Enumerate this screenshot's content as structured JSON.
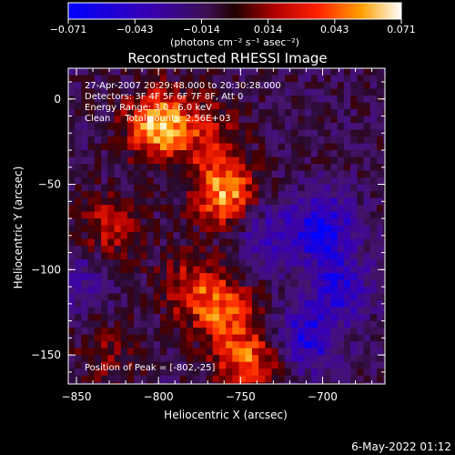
{
  "title": "Reconstructed RHESSI Image",
  "xlabel": "Heliocentric X (arcsec)",
  "ylabel": "Heliocentric Y (arcsec)",
  "colorbar": {
    "ticks": [
      "-0.071",
      "-0.043",
      "-0.014",
      "0.014",
      "0.043",
      "0.071"
    ],
    "unit_label": "(photons cm⁻² s⁻¹ asec⁻²)",
    "range": [
      -0.071,
      0.071
    ]
  },
  "annotations": [
    "27-Apr-2007 20:29:48.000 to 20:30:28.000",
    "Detectors: 3F 4F 5F 6F 7F 8F, Att 0",
    "Energy Range: 3.0 - 6.0 keV",
    "Clean     Total counts: 2.56E+03"
  ],
  "peak_label": "Position of Peak = [-802,-25]",
  "timestamp": "6-May-2022 01:12",
  "chart_data": {
    "type": "heatmap",
    "title": "Reconstructed RHESSI Image",
    "xlabel": "Heliocentric X (arcsec)",
    "ylabel": "Heliocentric Y (arcsec)",
    "xlim": [
      -855,
      -662
    ],
    "ylim": [
      -167,
      18
    ],
    "x_ticks": [
      -850,
      -800,
      -750,
      -700
    ],
    "y_ticks": [
      0,
      -50,
      -100,
      -150
    ],
    "x_tick_labels": [
      "-850",
      "-800",
      "-750",
      "-700"
    ],
    "y_tick_labels": [
      "0",
      "-50",
      "-100",
      "-150"
    ],
    "peak": [
      -802,
      -25
    ],
    "hot_spots": [
      {
        "x": -800,
        "y": -15,
        "intensity": 0.071
      },
      {
        "x": -760,
        "y": -55,
        "intensity": 0.065
      },
      {
        "x": -745,
        "y": -155,
        "intensity": 0.05
      },
      {
        "x": -760,
        "y": -125,
        "intensity": 0.045
      },
      {
        "x": -830,
        "y": -75,
        "intensity": 0.035
      },
      {
        "x": -780,
        "y": -110,
        "intensity": 0.035
      },
      {
        "x": -770,
        "y": -20,
        "intensity": 0.03
      },
      {
        "x": -830,
        "y": -150,
        "intensity": 0.02
      }
    ],
    "cold_spots": [
      {
        "x": -700,
        "y": -75,
        "intensity": -0.05
      },
      {
        "x": -710,
        "y": -140,
        "intensity": -0.045
      },
      {
        "x": -690,
        "y": -110,
        "intensity": -0.04
      },
      {
        "x": -735,
        "y": -80,
        "intensity": -0.03
      },
      {
        "x": -850,
        "y": -105,
        "intensity": -0.025
      }
    ]
  }
}
